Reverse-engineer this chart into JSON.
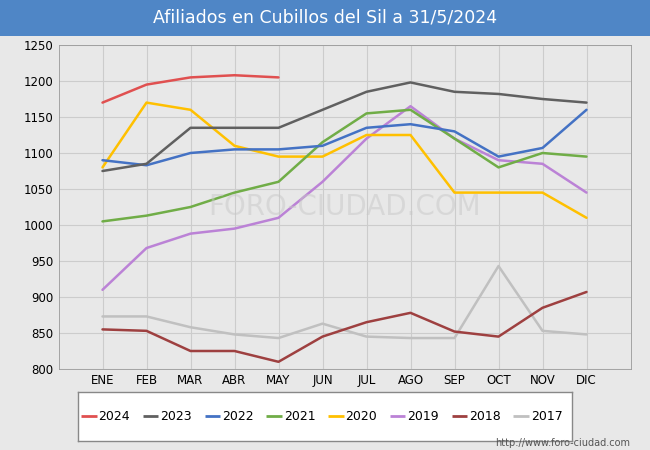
{
  "title": "Afiliados en Cubillos del Sil a 31/5/2024",
  "title_bgcolor": "#4f86c6",
  "title_fgcolor": "#ffffff",
  "ylim": [
    800,
    1250
  ],
  "yticks": [
    800,
    850,
    900,
    950,
    1000,
    1050,
    1100,
    1150,
    1200,
    1250
  ],
  "months": [
    "ENE",
    "FEB",
    "MAR",
    "ABR",
    "MAY",
    "JUN",
    "JUL",
    "AGO",
    "SEP",
    "OCT",
    "NOV",
    "DIC"
  ],
  "watermark": "http://www.foro-ciudad.com",
  "series": {
    "2024": {
      "color": "#e05050",
      "values": [
        1170,
        1195,
        1205,
        1208,
        1205,
        null,
        null,
        null,
        null,
        null,
        null,
        null
      ]
    },
    "2023": {
      "color": "#606060",
      "values": [
        1075,
        1085,
        1135,
        1135,
        1135,
        1160,
        1185,
        1198,
        1185,
        1182,
        1175,
        1170
      ]
    },
    "2022": {
      "color": "#4472c4",
      "values": [
        1090,
        1083,
        1100,
        1105,
        1105,
        1110,
        1135,
        1140,
        1130,
        1095,
        1107,
        1160
      ]
    },
    "2021": {
      "color": "#70ad47",
      "values": [
        1005,
        1013,
        1025,
        1045,
        1060,
        1115,
        1155,
        1160,
        1120,
        1080,
        1100,
        1095
      ]
    },
    "2020": {
      "color": "#ffc000",
      "values": [
        1080,
        1170,
        1160,
        1110,
        1095,
        1095,
        1125,
        1125,
        1045,
        1045,
        1045,
        1010
      ]
    },
    "2019": {
      "color": "#bb82d6",
      "values": [
        910,
        968,
        988,
        995,
        1010,
        1060,
        1120,
        1165,
        1120,
        1090,
        1085,
        1045
      ]
    },
    "2018": {
      "color": "#9e4040",
      "values": [
        855,
        853,
        825,
        825,
        810,
        845,
        865,
        878,
        852,
        845,
        885,
        907
      ]
    },
    "2017": {
      "color": "#c0c0c0",
      "values": [
        873,
        873,
        858,
        848,
        843,
        863,
        845,
        843,
        843,
        943,
        853,
        848
      ]
    }
  },
  "legend_order": [
    "2024",
    "2023",
    "2022",
    "2021",
    "2020",
    "2019",
    "2018",
    "2017"
  ],
  "fig_facecolor": "#e8e8e8",
  "plot_facecolor": "#e8e8e8",
  "grid_color": "#cccccc"
}
